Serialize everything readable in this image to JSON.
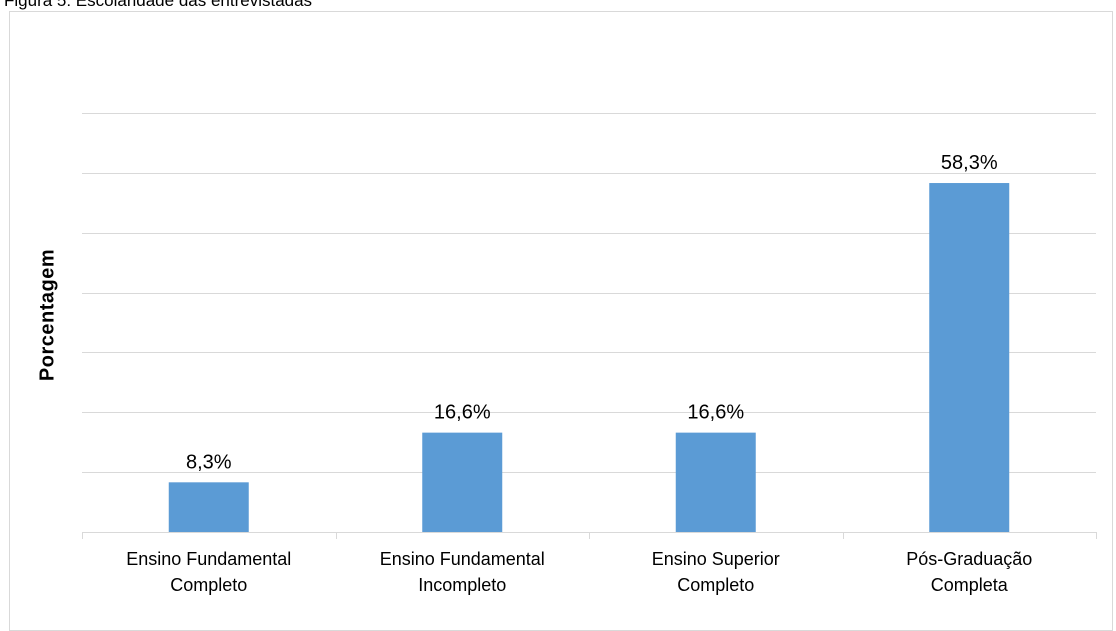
{
  "figure_caption": "Figura 5: Escolaridade das entrevistadas",
  "chart_data": {
    "type": "bar",
    "title": "",
    "xlabel": "",
    "ylabel": "Porcentagem",
    "categories": [
      [
        "Ensino Fundamental",
        "Completo"
      ],
      [
        "Ensino Fundamental",
        "Incompleto"
      ],
      [
        "Ensino Superior",
        "Completo"
      ],
      [
        "Pós-Graduação",
        "Completa"
      ]
    ],
    "values": [
      8.3,
      16.6,
      16.6,
      58.3
    ],
    "data_labels": [
      "8,3%",
      "16,6%",
      "16,6%",
      "58,3%"
    ],
    "ylim": [
      0,
      70
    ],
    "y_gridline_step": 10,
    "y_tick_labels_shown": false,
    "grid": true,
    "legend": "none",
    "bar_color": "#5b9bd5",
    "grid_color": "#d9d9d9"
  }
}
